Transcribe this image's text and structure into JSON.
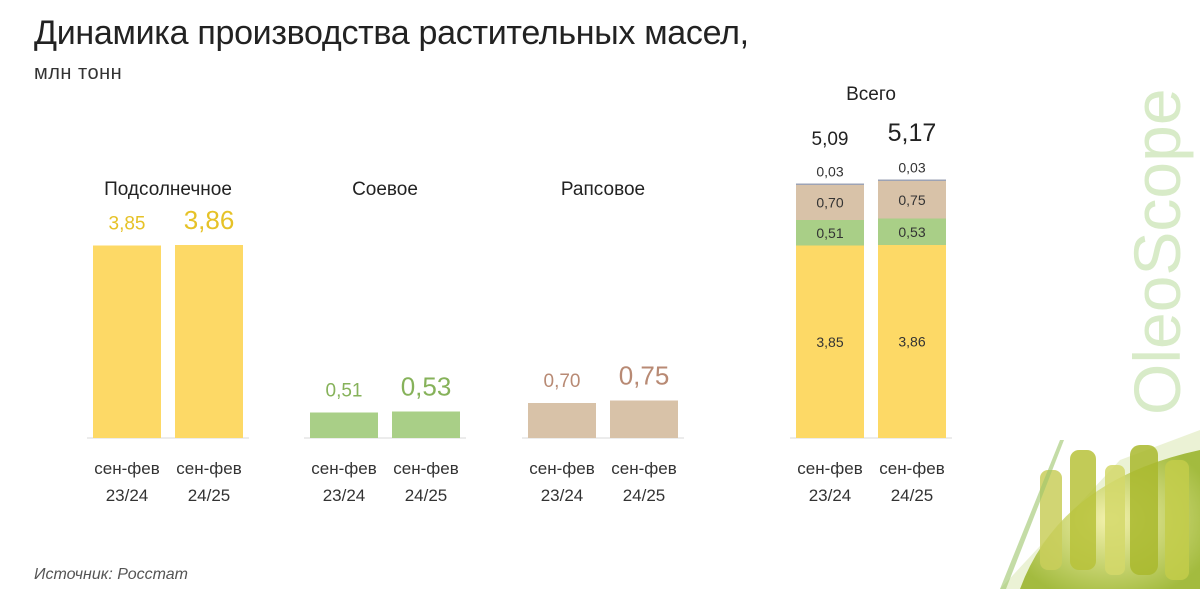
{
  "title": "Динамика производства растительных масел,",
  "subtitle": "млн тонн",
  "source": "Источник: Росстат",
  "brand": "OleoScope",
  "colors": {
    "sunflower": "#FDD966",
    "soy": "#A9CF87",
    "rapeseed": "#D8C2A8",
    "other": "#9DA3B5",
    "sunflower_label": "#E6C227",
    "soy_label": "#86B25A",
    "rapeseed_label": "#B88A74",
    "axis": "#D9D9D9",
    "watermark": "#D8EBC8"
  },
  "chart_data": {
    "type": "bar",
    "unit": "млн тонн",
    "categories": [
      "сен-фев 23/24",
      "сен-фев 24/25"
    ],
    "panels": [
      {
        "name": "Подсолнечное",
        "values": [
          3.85,
          3.86
        ],
        "labels": [
          "3,85",
          "3,86"
        ],
        "color_key": "sunflower"
      },
      {
        "name": "Соевое",
        "values": [
          0.51,
          0.53
        ],
        "labels": [
          "0,51",
          "0,53"
        ],
        "color_key": "soy"
      },
      {
        "name": "Рапсовое",
        "values": [
          0.7,
          0.75
        ],
        "labels": [
          "0,70",
          "0,75"
        ],
        "color_key": "rapeseed"
      }
    ],
    "total": {
      "name": "Всего",
      "type": "stacked-bar",
      "totals": [
        5.09,
        5.17
      ],
      "total_labels": [
        "5,09",
        "5,17"
      ],
      "segments": [
        {
          "color_key": "sunflower",
          "values": [
            3.85,
            3.86
          ],
          "labels": [
            "3,85",
            "3,86"
          ]
        },
        {
          "color_key": "soy",
          "values": [
            0.51,
            0.53
          ],
          "labels": [
            "0,51",
            "0,53"
          ]
        },
        {
          "color_key": "rapeseed",
          "values": [
            0.7,
            0.75
          ],
          "labels": [
            "0,70",
            "0,75"
          ]
        },
        {
          "color_key": "other",
          "values": [
            0.03,
            0.03
          ],
          "labels": [
            "0,03",
            "0,03"
          ]
        }
      ]
    },
    "x_tick_labels": [
      [
        "сен-фев",
        "23/24"
      ],
      [
        "сен-фев",
        "24/25"
      ]
    ]
  }
}
